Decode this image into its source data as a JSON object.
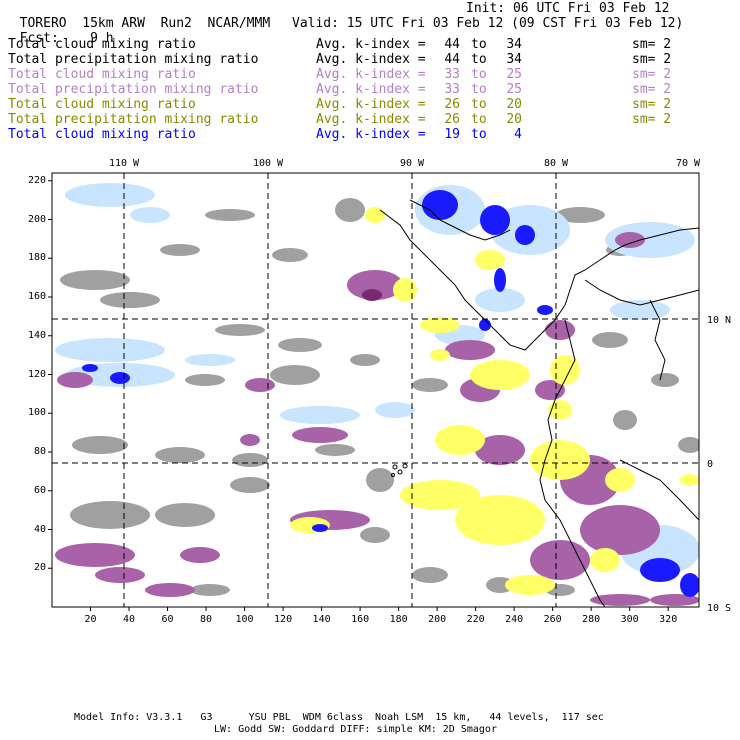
{
  "header": {
    "model": "TORERO",
    "resolution": "15km ARW",
    "run": "Run2",
    "org": "NCAR/MMM",
    "init": "Init: 06 UTC Fri 03 Feb 12",
    "fcst_label": "Fcst:",
    "fcst_value": "9 h",
    "valid": "Valid: 15 UTC Fri 03 Feb 12 (09 CST Fri 03 Feb 12)"
  },
  "legend": [
    {
      "field": "Total cloud mixing ratio",
      "index": "Avg. k-index =",
      "from": "44",
      "to_word": "to",
      "to": "34",
      "sm": "sm= 2",
      "color": "#000000"
    },
    {
      "field": "Total precipitation mixing ratio",
      "index": "Avg. k-index =",
      "from": "44",
      "to_word": "to",
      "to": "34",
      "sm": "sm= 2",
      "color": "#000000"
    },
    {
      "field": "Total cloud mixing ratio",
      "index": "Avg. k-index =",
      "from": "33",
      "to_word": "to",
      "to": "25",
      "sm": "sm= 2",
      "color": "#b77fc4"
    },
    {
      "field": "Total precipitation mixing ratio",
      "index": "Avg. k-index =",
      "from": "33",
      "to_word": "to",
      "to": "25",
      "sm": "sm= 2",
      "color": "#b77fc4"
    },
    {
      "field": "Total cloud mixing ratio",
      "index": "Avg. k-index =",
      "from": "26",
      "to_word": "to",
      "to": "20",
      "sm": "sm= 2",
      "color": "#8a8a00"
    },
    {
      "field": "Total precipitation mixing ratio",
      "index": "Avg. k-index =",
      "from": "26",
      "to_word": "to",
      "to": "20",
      "sm": "sm= 2",
      "color": "#8a8a00"
    },
    {
      "field": "Total cloud mixing ratio",
      "index": "Avg. k-index =",
      "from": "19",
      "to_word": "to",
      "to": "4",
      "sm": "",
      "color": "#0000ff"
    }
  ],
  "axes": {
    "top_lon": [
      "110 W",
      "100 W",
      "90 W",
      "80 W",
      "70 W"
    ],
    "right_lat": [
      "10 N",
      "0",
      "10 S"
    ],
    "left_y": [
      "220",
      "200",
      "180",
      "160",
      "140",
      "120",
      "100",
      "80",
      "60",
      "40",
      "20"
    ],
    "bottom_x": [
      "20",
      "40",
      "60",
      "80",
      "100",
      "120",
      "140",
      "160",
      "180",
      "200",
      "220",
      "240",
      "260",
      "280",
      "300",
      "320"
    ]
  },
  "colors": {
    "gray_cloud": "#a0a0a0",
    "purple": "#a863a8",
    "dark_purple": "#7a2a6e",
    "yellow": "#ffff66",
    "blue": "#1a1aff",
    "light_blue": "#c8e4ff"
  },
  "footer": {
    "line1": "Model Info: V3.3.1   G3      YSU PBL  WDM 6class  Noah LSM  15 km,   44 levels,  117 sec",
    "line2": "LW: Godd SW: Goddard DIFF: simple KM: 2D Smagor"
  }
}
